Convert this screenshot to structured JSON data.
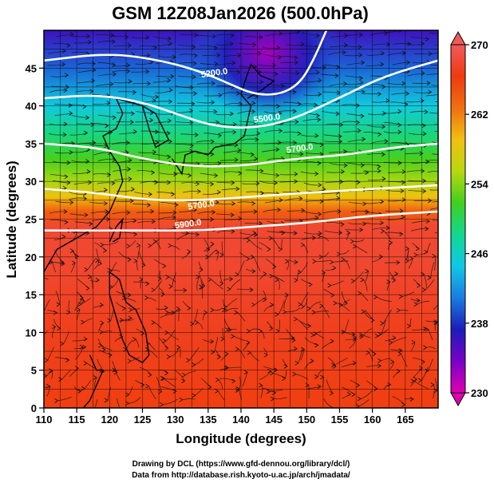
{
  "chart_data": {
    "type": "heatmap",
    "title": "GSM 12Z08Jan2026 (500.0hPa)",
    "xlabel": "Longitude (degrees)",
    "ylabel": "Latitude  (degrees)",
    "xlim": [
      110,
      170
    ],
    "ylim": [
      0,
      50
    ],
    "grid": true,
    "x_ticks": [
      110,
      115,
      120,
      125,
      130,
      135,
      140,
      145,
      150,
      155,
      160,
      165
    ],
    "y_ticks": [
      0,
      5,
      10,
      15,
      20,
      25,
      30,
      35,
      40,
      45
    ],
    "colorbar": {
      "range": [
        230,
        270
      ],
      "ticks": [
        230,
        238,
        246,
        254,
        262,
        270
      ],
      "colors": [
        "#e000b0",
        "#7a00c8",
        "#1c1cb8",
        "#1a7ce0",
        "#10c8e8",
        "#10d890",
        "#40d020",
        "#b8d810",
        "#f0c010",
        "#f07010",
        "#f03a10",
        "#f05a5a"
      ]
    },
    "temperature_bands": [
      {
        "lat": 0,
        "value": 266
      },
      {
        "lat": 10,
        "value": 267
      },
      {
        "lat": 20,
        "value": 268
      },
      {
        "lat": 24,
        "value": 268
      },
      {
        "lat": 26,
        "value": 264
      },
      {
        "lat": 28,
        "value": 259
      },
      {
        "lat": 30,
        "value": 255
      },
      {
        "lat": 33,
        "value": 252
      },
      {
        "lat": 36,
        "value": 249
      },
      {
        "lat": 40,
        "value": 245
      },
      {
        "lat": 45,
        "value": 240
      },
      {
        "lat": 50,
        "value": 236
      }
    ],
    "cold_low_center": {
      "lon": 144,
      "lat": 47,
      "value": 232
    },
    "contours": [
      {
        "label": "5200.0",
        "points": [
          [
            110,
            46
          ],
          [
            120,
            47
          ],
          [
            128,
            46
          ],
          [
            134,
            44.5
          ],
          [
            138,
            43
          ],
          [
            142,
            41.5
          ],
          [
            146,
            41.5
          ],
          [
            149,
            43
          ],
          [
            151,
            46
          ],
          [
            153,
            50
          ]
        ],
        "label_at": [
          136,
          44
        ]
      },
      {
        "label": "5500.0",
        "points": [
          [
            110,
            41
          ],
          [
            118,
            41.5
          ],
          [
            125,
            40.5
          ],
          [
            130,
            39
          ],
          [
            135,
            37.5
          ],
          [
            140,
            37
          ],
          [
            145,
            37.5
          ],
          [
            150,
            39
          ],
          [
            156,
            41.5
          ],
          [
            162,
            44
          ],
          [
            170,
            46
          ]
        ],
        "label_at": [
          144,
          38
        ]
      },
      {
        "label": "5700.0",
        "points": [
          [
            110,
            35
          ],
          [
            118,
            34.5
          ],
          [
            125,
            33
          ],
          [
            132,
            32
          ],
          [
            140,
            32
          ],
          [
            148,
            33
          ],
          [
            156,
            33.5
          ],
          [
            163,
            34.5
          ],
          [
            170,
            35
          ]
        ],
        "label_at": [
          149,
          34
        ]
      },
      {
        "label": "5700.0",
        "points": [
          [
            110,
            29
          ],
          [
            118,
            28.5
          ],
          [
            126,
            27.5
          ],
          [
            134,
            27.5
          ],
          [
            142,
            28
          ],
          [
            150,
            28.5
          ],
          [
            160,
            29
          ],
          [
            170,
            29.5
          ]
        ],
        "label_at": [
          134,
          26.5
        ]
      },
      {
        "label": "5900.0",
        "points": [
          [
            110,
            23.5
          ],
          [
            118,
            23.5
          ],
          [
            126,
            23.5
          ],
          [
            134,
            23.5
          ],
          [
            142,
            24
          ],
          [
            150,
            24.5
          ],
          [
            160,
            25.5
          ],
          [
            170,
            26
          ]
        ],
        "label_at": [
          132,
          24
        ]
      }
    ],
    "credits": [
      "Drawing by DCL (https://www.gfd-dennou.org/library/dcl/)",
      "Data from http://database.rish.kyoto-u.ac.jp/arch/jmadata/"
    ]
  }
}
